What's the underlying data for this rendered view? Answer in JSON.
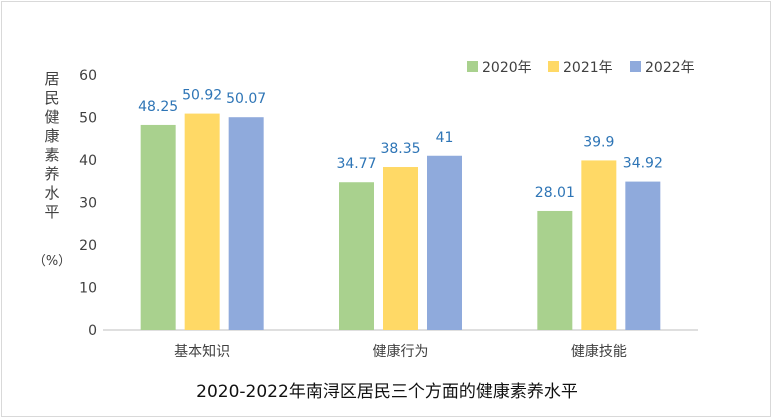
{
  "chart_data": {
    "type": "bar",
    "title": "2020-2022年南浔区居民三个方面的健康素养水平",
    "ylabel": "居民健康素养水平",
    "yunit": "（%）",
    "categories": [
      "基本知识",
      "健康行为",
      "健康技能"
    ],
    "series": [
      {
        "name": "2020年",
        "values": [
          48.25,
          34.77,
          28.01
        ],
        "labels": [
          "48.25",
          "34.77",
          "28.01"
        ],
        "color": "#a9d18e"
      },
      {
        "name": "2021年",
        "values": [
          50.92,
          38.35,
          39.9
        ],
        "labels": [
          "50.92",
          "38.35",
          "39.9"
        ],
        "color": "#ffd966"
      },
      {
        "name": "2022年",
        "values": [
          50.07,
          41,
          34.92
        ],
        "labels": [
          "50.07",
          "41",
          "34.92"
        ],
        "color": "#8faadc"
      }
    ],
    "ylim": [
      0,
      60
    ],
    "yticks": [
      0,
      10,
      20,
      30,
      40,
      50,
      60
    ],
    "grid": false,
    "legend": "top-right",
    "colors": {
      "axis_text": "#404040",
      "data_label": "#2e75b6",
      "axis_line": "#bfbfbf"
    }
  }
}
